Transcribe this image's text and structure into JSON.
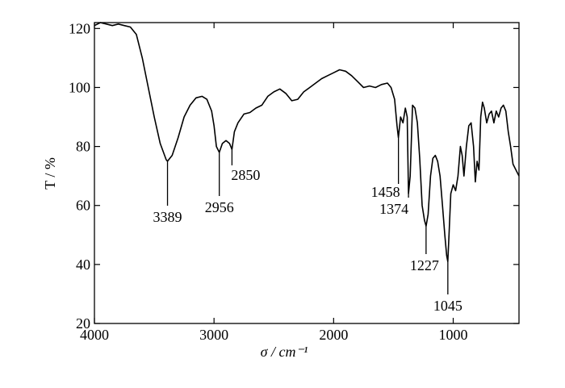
{
  "chart_data": {
    "type": "line",
    "xlabel": "σ / cm⁻¹",
    "ylabel": "T / %",
    "xlim": [
      4000,
      450
    ],
    "ylim": [
      20,
      122
    ],
    "xticks": [
      4000,
      3000,
      2000,
      1000
    ],
    "yticks": [
      20,
      40,
      60,
      80,
      100,
      120
    ],
    "color": "#000000",
    "x": [
      4000,
      3950,
      3900,
      3850,
      3800,
      3750,
      3700,
      3650,
      3600,
      3550,
      3500,
      3450,
      3400,
      3389,
      3350,
      3300,
      3250,
      3200,
      3150,
      3100,
      3060,
      3020,
      3000,
      2980,
      2956,
      2930,
      2900,
      2870,
      2850,
      2830,
      2800,
      2750,
      2700,
      2650,
      2600,
      2550,
      2500,
      2450,
      2400,
      2350,
      2300,
      2250,
      2200,
      2150,
      2100,
      2050,
      2000,
      1950,
      1900,
      1850,
      1800,
      1750,
      1700,
      1650,
      1600,
      1550,
      1520,
      1490,
      1470,
      1458,
      1440,
      1420,
      1400,
      1385,
      1374,
      1360,
      1340,
      1320,
      1300,
      1280,
      1260,
      1240,
      1227,
      1210,
      1190,
      1170,
      1150,
      1130,
      1110,
      1090,
      1070,
      1055,
      1045,
      1035,
      1020,
      1000,
      980,
      960,
      940,
      925,
      910,
      890,
      870,
      850,
      830,
      815,
      800,
      785,
      770,
      755,
      740,
      720,
      700,
      680,
      660,
      640,
      620,
      600,
      580,
      560,
      540,
      520,
      500,
      450
    ],
    "values": [
      121,
      122,
      121.5,
      121,
      121.5,
      121,
      120.5,
      118,
      110,
      100,
      90,
      81,
      75.5,
      75,
      77,
      83,
      90,
      94,
      96.5,
      97,
      96,
      92,
      87,
      80,
      78,
      81,
      82,
      81,
      79,
      85,
      88,
      91,
      91.5,
      93,
      94,
      97,
      98.5,
      99.5,
      98,
      95.5,
      96,
      98.5,
      100,
      101.5,
      103,
      104,
      105,
      106,
      105.5,
      104,
      102,
      100,
      100.5,
      100,
      101,
      101.5,
      100,
      96,
      87,
      83,
      90,
      88,
      93,
      90,
      64,
      70,
      94,
      93,
      88,
      76,
      60,
      55,
      53,
      57,
      70,
      76,
      77,
      75,
      70,
      60,
      50,
      43,
      41,
      50,
      64,
      67,
      65,
      70,
      80,
      77,
      70,
      80,
      87,
      88,
      80,
      68,
      75,
      72,
      90,
      95,
      93,
      88,
      91,
      92,
      88,
      92,
      90,
      93,
      94,
      92,
      85,
      80,
      74,
      70
    ],
    "annotations": [
      {
        "label": "3389",
        "x": 3389,
        "y": 75
      },
      {
        "label": "2956",
        "x": 2956,
        "y": 78
      },
      {
        "label": "2850",
        "x": 2850,
        "y": 79
      },
      {
        "label": "1458",
        "x": 1458,
        "y": 83
      },
      {
        "label": "1374",
        "x": 1374,
        "y": 64
      },
      {
        "label": "1227",
        "x": 1227,
        "y": 53
      },
      {
        "label": "1045",
        "x": 1045,
        "y": 41
      }
    ]
  }
}
